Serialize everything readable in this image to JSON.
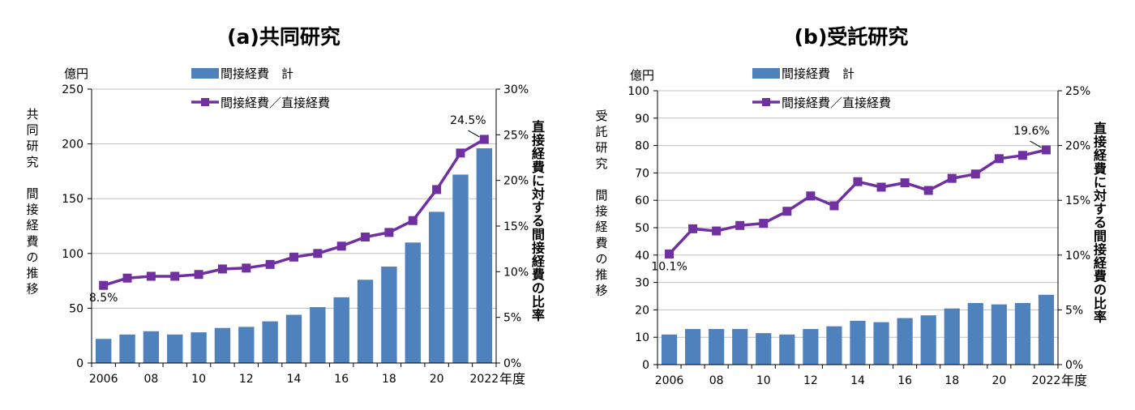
{
  "chart_data": [
    {
      "type": "bar",
      "title": "(a)共同研究",
      "left_axis_unit": "億円",
      "left_axis_label": "共同研究 間接経費の推移",
      "left_axis_label_lines": [
        "共",
        "同",
        "研",
        "究",
        "",
        "間",
        "接",
        "経",
        "費",
        "の",
        "推",
        "移"
      ],
      "right_axis_label": "直接経費に対する間接経費の比率",
      "x_unit": "年度",
      "ylim": [
        0,
        250
      ],
      "y2lim": [
        0,
        30
      ],
      "yticks": [
        0,
        50,
        100,
        150,
        200,
        250
      ],
      "y2ticks": [
        "0%",
        "5%",
        "10%",
        "15%",
        "20%",
        "25%",
        "30%"
      ],
      "x": [
        2006,
        2007,
        2008,
        2009,
        2010,
        2011,
        2012,
        2013,
        2014,
        2015,
        2016,
        2017,
        2018,
        2019,
        2020,
        2021,
        2022
      ],
      "xtick_labels": [
        "2006",
        "",
        "08",
        "",
        "10",
        "",
        "12",
        "",
        "14",
        "",
        "16",
        "",
        "18",
        "",
        "20",
        "",
        "2022"
      ],
      "series": [
        {
          "name": "間接経費　計",
          "kind": "bar",
          "axis": "left",
          "color": "#4f81bd",
          "values": [
            22,
            26,
            29,
            26,
            28,
            32,
            33,
            38,
            44,
            51,
            60,
            76,
            88,
            110,
            138,
            172,
            196
          ]
        },
        {
          "name": "間接経費／直接経費",
          "kind": "line",
          "axis": "right",
          "color": "#7030a0",
          "values": [
            8.5,
            9.3,
            9.5,
            9.5,
            9.7,
            10.3,
            10.4,
            10.8,
            11.6,
            12.0,
            12.8,
            13.8,
            14.3,
            15.6,
            19.0,
            23.0,
            24.5
          ]
        }
      ],
      "annotations": [
        {
          "text": "8.5%",
          "x": 2006,
          "value": 8.5
        },
        {
          "text": "24.5%",
          "x": 2022,
          "value": 24.5
        }
      ],
      "legend_position": "top"
    },
    {
      "type": "bar",
      "title": "(b)受託研究",
      "left_axis_unit": "億円",
      "left_axis_label": "受託研究 間接経費の推移",
      "left_axis_label_lines": [
        "受",
        "託",
        "研",
        "究",
        "",
        "間",
        "接",
        "経",
        "費",
        "の",
        "推",
        "移"
      ],
      "right_axis_label": "直接経費に対する間接経費の比率",
      "x_unit": "年度",
      "ylim": [
        0,
        100
      ],
      "y2lim": [
        0,
        25
      ],
      "yticks": [
        0,
        10,
        20,
        30,
        40,
        50,
        60,
        70,
        80,
        90,
        100
      ],
      "y2ticks": [
        "0%",
        "5%",
        "10%",
        "15%",
        "20%",
        "25%"
      ],
      "x": [
        2006,
        2007,
        2008,
        2009,
        2010,
        2011,
        2012,
        2013,
        2014,
        2015,
        2016,
        2017,
        2018,
        2019,
        2020,
        2021,
        2022
      ],
      "xtick_labels": [
        "2006",
        "",
        "08",
        "",
        "10",
        "",
        "12",
        "",
        "14",
        "",
        "16",
        "",
        "18",
        "",
        "20",
        "",
        "2022"
      ],
      "series": [
        {
          "name": "間接経費　計",
          "kind": "bar",
          "axis": "left",
          "color": "#4f81bd",
          "values": [
            11,
            13,
            13,
            13,
            11.5,
            11,
            13,
            14,
            16,
            15.5,
            17,
            18,
            20.5,
            22.5,
            22,
            22.5,
            25.5
          ]
        },
        {
          "name": "間接経費／直接経費",
          "kind": "line",
          "axis": "right",
          "color": "#7030a0",
          "values": [
            10.1,
            12.4,
            12.2,
            12.7,
            12.9,
            14.0,
            15.4,
            14.5,
            16.7,
            16.2,
            16.6,
            15.9,
            17.0,
            17.4,
            18.8,
            19.1,
            19.6
          ]
        }
      ],
      "annotations": [
        {
          "text": "10.1%",
          "x": 2006,
          "value": 10.1
        },
        {
          "text": "19.6%",
          "x": 2022,
          "value": 19.6
        }
      ],
      "legend_position": "top"
    }
  ]
}
